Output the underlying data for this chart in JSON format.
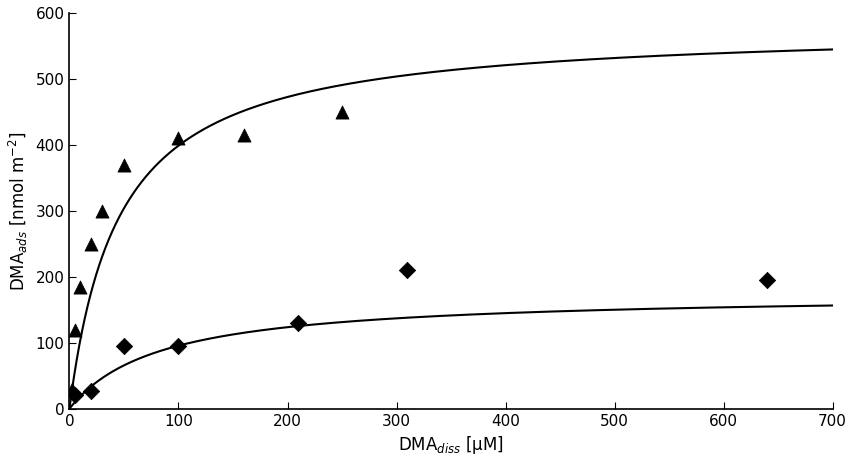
{
  "title": "",
  "xlabel": "DMA$_{diss}$ [μM]",
  "ylabel": "DMA$_{ads}$ [nmol m$^{-2}$]",
  "xlim": [
    0,
    700
  ],
  "ylim": [
    0,
    600
  ],
  "xticks": [
    0,
    100,
    200,
    300,
    400,
    500,
    600,
    700
  ],
  "yticks": [
    0,
    100,
    200,
    300,
    400,
    500,
    600
  ],
  "ph6_x": [
    2,
    5,
    10,
    20,
    30,
    50,
    100,
    160,
    250
  ],
  "ph6_y": [
    30,
    120,
    185,
    250,
    300,
    370,
    410,
    415,
    450
  ],
  "ph8_x": [
    5,
    20,
    50,
    100,
    210,
    310,
    640
  ],
  "ph8_y": [
    20,
    27,
    95,
    95,
    130,
    210,
    195
  ],
  "langmuir_ph6_qmax": 580,
  "langmuir_ph6_K": 0.022,
  "langmuir_ph8_qmax": 175,
  "langmuir_ph8_K": 0.012,
  "marker_color": "black",
  "line_color": "black",
  "background_color": "white",
  "figsize": [
    8.54,
    4.63
  ],
  "dpi": 100
}
